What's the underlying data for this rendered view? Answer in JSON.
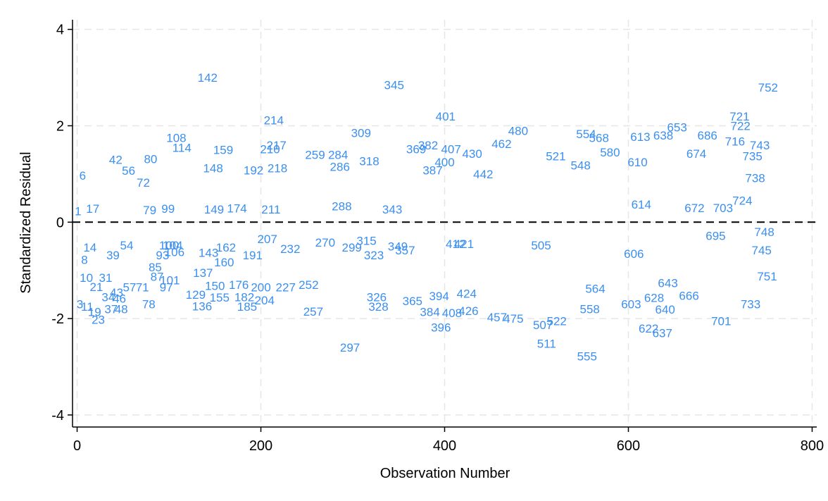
{
  "colors": {
    "background": "#ffffff",
    "marker": "#3a8ff0",
    "grid": "#e6e6e6",
    "axis": "#000000",
    "reference_line": "#000000"
  },
  "chart_data": {
    "type": "scatter",
    "title": "",
    "xlabel": "Observation Number",
    "ylabel": "Standardized Residual",
    "xlim": [
      -5,
      805
    ],
    "ylim": [
      -4.25,
      4.2
    ],
    "x_ticks": [
      0,
      200,
      400,
      600,
      800
    ],
    "y_ticks": [
      -4,
      -2,
      0,
      2,
      4
    ],
    "x_tick_labels": [
      "0",
      "200",
      "400",
      "600",
      "800"
    ],
    "y_tick_labels": [
      "-4",
      "-2",
      "0",
      "2",
      "4"
    ],
    "grid": true,
    "grid_style": "dashed",
    "reference_line": {
      "axis": "y",
      "value": 0,
      "style": "dashed"
    },
    "marker": "observation-number label",
    "points": [
      {
        "label": "1",
        "x": 1,
        "y": 0.23
      },
      {
        "label": "3",
        "x": 3,
        "y": -1.7
      },
      {
        "label": "6",
        "x": 6,
        "y": 0.97
      },
      {
        "label": "8",
        "x": 8,
        "y": -0.78
      },
      {
        "label": "10",
        "x": 10,
        "y": -1.15
      },
      {
        "label": "11",
        "x": 11,
        "y": -1.75
      },
      {
        "label": "14",
        "x": 14,
        "y": -0.52
      },
      {
        "label": "17",
        "x": 17,
        "y": 0.28
      },
      {
        "label": "19",
        "x": 19,
        "y": -1.86
      },
      {
        "label": "21",
        "x": 21,
        "y": -1.34
      },
      {
        "label": "23",
        "x": 23,
        "y": -2.02
      },
      {
        "label": "31",
        "x": 31,
        "y": -1.15
      },
      {
        "label": "34",
        "x": 34,
        "y": -1.55
      },
      {
        "label": "37",
        "x": 37,
        "y": -1.8
      },
      {
        "label": "39",
        "x": 39,
        "y": -0.68
      },
      {
        "label": "42",
        "x": 42,
        "y": 1.3
      },
      {
        "label": "43",
        "x": 43,
        "y": -1.46
      },
      {
        "label": "46",
        "x": 46,
        "y": -1.58
      },
      {
        "label": "48",
        "x": 48,
        "y": -1.8
      },
      {
        "label": "54",
        "x": 54,
        "y": -0.48
      },
      {
        "label": "56",
        "x": 56,
        "y": 1.07
      },
      {
        "label": "57",
        "x": 57,
        "y": -1.35
      },
      {
        "label": "71",
        "x": 71,
        "y": -1.35
      },
      {
        "label": "72",
        "x": 72,
        "y": 0.82
      },
      {
        "label": "78",
        "x": 78,
        "y": -1.7
      },
      {
        "label": "79",
        "x": 79,
        "y": 0.25
      },
      {
        "label": "80",
        "x": 80,
        "y": 1.31
      },
      {
        "label": "85",
        "x": 85,
        "y": -0.93
      },
      {
        "label": "87",
        "x": 87,
        "y": -1.13
      },
      {
        "label": "93",
        "x": 93,
        "y": -0.68
      },
      {
        "label": "97",
        "x": 97,
        "y": -1.35
      },
      {
        "label": "99",
        "x": 99,
        "y": 0.28
      },
      {
        "label": "100",
        "x": 100,
        "y": -0.48
      },
      {
        "label": "101",
        "x": 101,
        "y": -1.2
      },
      {
        "label": "104",
        "x": 104,
        "y": -0.48
      },
      {
        "label": "106",
        "x": 106,
        "y": -0.62
      },
      {
        "label": "108",
        "x": 108,
        "y": 1.75
      },
      {
        "label": "114",
        "x": 114,
        "y": 1.55
      },
      {
        "label": "129",
        "x": 129,
        "y": -1.5
      },
      {
        "label": "136",
        "x": 136,
        "y": -1.74
      },
      {
        "label": "137",
        "x": 137,
        "y": -1.05
      },
      {
        "label": "142",
        "x": 142,
        "y": 3.0
      },
      {
        "label": "143",
        "x": 143,
        "y": -0.63
      },
      {
        "label": "148",
        "x": 148,
        "y": 1.12
      },
      {
        "label": "149",
        "x": 149,
        "y": 0.27
      },
      {
        "label": "150",
        "x": 150,
        "y": -1.32
      },
      {
        "label": "155",
        "x": 155,
        "y": -1.56
      },
      {
        "label": "159",
        "x": 159,
        "y": 1.5
      },
      {
        "label": "160",
        "x": 160,
        "y": -0.83
      },
      {
        "label": "162",
        "x": 162,
        "y": -0.52
      },
      {
        "label": "174",
        "x": 174,
        "y": 0.29
      },
      {
        "label": "176",
        "x": 176,
        "y": -1.3
      },
      {
        "label": "182",
        "x": 182,
        "y": -1.55
      },
      {
        "label": "185",
        "x": 185,
        "y": -1.75
      },
      {
        "label": "191",
        "x": 191,
        "y": -0.68
      },
      {
        "label": "192",
        "x": 192,
        "y": 1.08
      },
      {
        "label": "200",
        "x": 200,
        "y": -1.35
      },
      {
        "label": "204",
        "x": 204,
        "y": -1.62
      },
      {
        "label": "207",
        "x": 207,
        "y": -0.35
      },
      {
        "label": "210",
        "x": 210,
        "y": 1.52
      },
      {
        "label": "211",
        "x": 211,
        "y": 0.27
      },
      {
        "label": "214",
        "x": 214,
        "y": 2.12
      },
      {
        "label": "217",
        "x": 217,
        "y": 1.6
      },
      {
        "label": "218",
        "x": 218,
        "y": 1.12
      },
      {
        "label": "227",
        "x": 227,
        "y": -1.35
      },
      {
        "label": "232",
        "x": 232,
        "y": -0.55
      },
      {
        "label": "252",
        "x": 252,
        "y": -1.3
      },
      {
        "label": "257",
        "x": 257,
        "y": -1.85
      },
      {
        "label": "259",
        "x": 259,
        "y": 1.4
      },
      {
        "label": "270",
        "x": 270,
        "y": -0.42
      },
      {
        "label": "284",
        "x": 284,
        "y": 1.4
      },
      {
        "label": "286",
        "x": 286,
        "y": 1.15
      },
      {
        "label": "288",
        "x": 288,
        "y": 0.33
      },
      {
        "label": "297",
        "x": 297,
        "y": -2.6
      },
      {
        "label": "299",
        "x": 299,
        "y": -0.52
      },
      {
        "label": "309",
        "x": 309,
        "y": 1.85
      },
      {
        "label": "315",
        "x": 315,
        "y": -0.38
      },
      {
        "label": "318",
        "x": 318,
        "y": 1.27
      },
      {
        "label": "323",
        "x": 323,
        "y": -0.68
      },
      {
        "label": "326",
        "x": 326,
        "y": -1.55
      },
      {
        "label": "328",
        "x": 328,
        "y": -1.75
      },
      {
        "label": "343",
        "x": 343,
        "y": 0.27
      },
      {
        "label": "345",
        "x": 345,
        "y": 2.85
      },
      {
        "label": "349",
        "x": 349,
        "y": -0.5
      },
      {
        "label": "357",
        "x": 357,
        "y": -0.58
      },
      {
        "label": "365",
        "x": 365,
        "y": -1.63
      },
      {
        "label": "369",
        "x": 369,
        "y": 1.52
      },
      {
        "label": "382",
        "x": 382,
        "y": 1.6
      },
      {
        "label": "384",
        "x": 384,
        "y": -1.86
      },
      {
        "label": "387",
        "x": 387,
        "y": 1.08
      },
      {
        "label": "394",
        "x": 394,
        "y": -1.53
      },
      {
        "label": "396",
        "x": 396,
        "y": -2.18
      },
      {
        "label": "400",
        "x": 400,
        "y": 1.25
      },
      {
        "label": "401",
        "x": 401,
        "y": 2.2
      },
      {
        "label": "407",
        "x": 407,
        "y": 1.52
      },
      {
        "label": "408",
        "x": 408,
        "y": -1.88
      },
      {
        "label": "412",
        "x": 412,
        "y": -0.45
      },
      {
        "label": "421",
        "x": 421,
        "y": -0.45
      },
      {
        "label": "424",
        "x": 424,
        "y": -1.48
      },
      {
        "label": "426",
        "x": 426,
        "y": -1.84
      },
      {
        "label": "430",
        "x": 430,
        "y": 1.42
      },
      {
        "label": "442",
        "x": 442,
        "y": 1.0
      },
      {
        "label": "457",
        "x": 457,
        "y": -1.97
      },
      {
        "label": "462",
        "x": 462,
        "y": 1.63
      },
      {
        "label": "475",
        "x": 475,
        "y": -2.0
      },
      {
        "label": "480",
        "x": 480,
        "y": 1.9
      },
      {
        "label": "505",
        "x": 505,
        "y": -0.48
      },
      {
        "label": "507",
        "x": 507,
        "y": -2.13
      },
      {
        "label": "511",
        "x": 511,
        "y": -2.52
      },
      {
        "label": "521",
        "x": 521,
        "y": 1.37
      },
      {
        "label": "522",
        "x": 522,
        "y": -2.05
      },
      {
        "label": "548",
        "x": 548,
        "y": 1.18
      },
      {
        "label": "554",
        "x": 554,
        "y": 1.83
      },
      {
        "label": "555",
        "x": 555,
        "y": -2.78
      },
      {
        "label": "558",
        "x": 558,
        "y": -1.8
      },
      {
        "label": "564",
        "x": 564,
        "y": -1.38
      },
      {
        "label": "568",
        "x": 568,
        "y": 1.75
      },
      {
        "label": "580",
        "x": 580,
        "y": 1.45
      },
      {
        "label": "603",
        "x": 603,
        "y": -1.7
      },
      {
        "label": "606",
        "x": 606,
        "y": -0.65
      },
      {
        "label": "610",
        "x": 610,
        "y": 1.25
      },
      {
        "label": "613",
        "x": 613,
        "y": 1.77
      },
      {
        "label": "614",
        "x": 614,
        "y": 0.37
      },
      {
        "label": "622",
        "x": 622,
        "y": -2.2
      },
      {
        "label": "628",
        "x": 628,
        "y": -1.57
      },
      {
        "label": "637",
        "x": 637,
        "y": -2.3
      },
      {
        "label": "638",
        "x": 638,
        "y": 1.8
      },
      {
        "label": "640",
        "x": 640,
        "y": -1.81
      },
      {
        "label": "643",
        "x": 643,
        "y": -1.26
      },
      {
        "label": "653",
        "x": 653,
        "y": 1.97
      },
      {
        "label": "666",
        "x": 666,
        "y": -1.52
      },
      {
        "label": "672",
        "x": 672,
        "y": 0.3
      },
      {
        "label": "674",
        "x": 674,
        "y": 1.42
      },
      {
        "label": "686",
        "x": 686,
        "y": 1.8
      },
      {
        "label": "695",
        "x": 695,
        "y": -0.28
      },
      {
        "label": "701",
        "x": 701,
        "y": -2.05
      },
      {
        "label": "703",
        "x": 703,
        "y": 0.3
      },
      {
        "label": "716",
        "x": 716,
        "y": 1.68
      },
      {
        "label": "721",
        "x": 721,
        "y": 2.2
      },
      {
        "label": "722",
        "x": 722,
        "y": 2.0
      },
      {
        "label": "724",
        "x": 724,
        "y": 0.45
      },
      {
        "label": "733",
        "x": 733,
        "y": -1.7
      },
      {
        "label": "735",
        "x": 735,
        "y": 1.37
      },
      {
        "label": "738",
        "x": 738,
        "y": 0.92
      },
      {
        "label": "743",
        "x": 743,
        "y": 1.6
      },
      {
        "label": "745",
        "x": 745,
        "y": -0.58
      },
      {
        "label": "748",
        "x": 748,
        "y": -0.2
      },
      {
        "label": "751",
        "x": 751,
        "y": -1.12
      },
      {
        "label": "752",
        "x": 752,
        "y": 2.8
      }
    ]
  }
}
